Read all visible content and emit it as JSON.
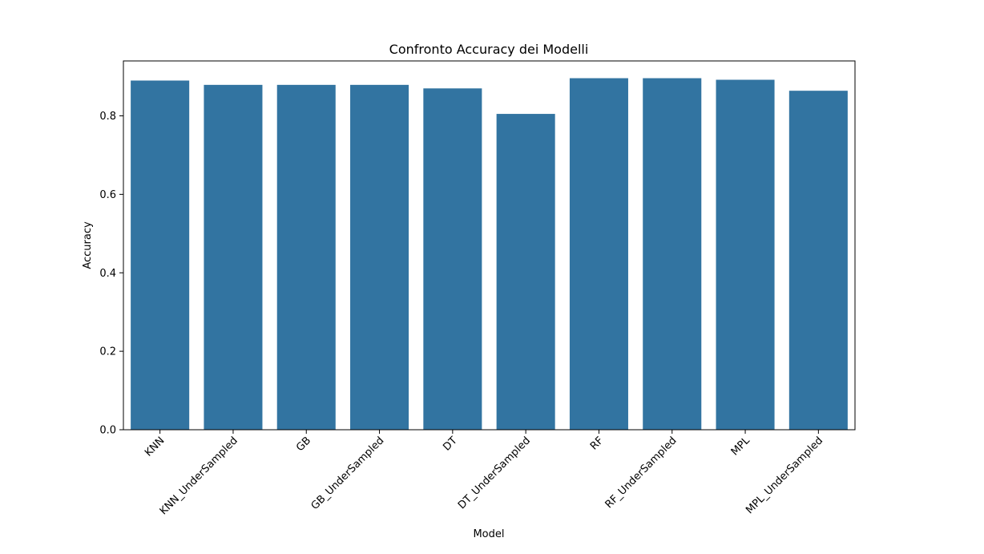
{
  "chart_data": {
    "type": "bar",
    "title": "Confronto Accuracy dei Modelli",
    "xlabel": "Model",
    "ylabel": "Accuracy",
    "categories": [
      "KNN",
      "KNN_UnderSampled",
      "GB",
      "GB_UnderSampled",
      "DT",
      "DT_UnderSampled",
      "RF",
      "RF_UnderSampled",
      "MPL",
      "MPL_UnderSampled"
    ],
    "values": [
      0.89,
      0.879,
      0.879,
      0.879,
      0.87,
      0.805,
      0.896,
      0.896,
      0.892,
      0.864
    ],
    "ylim": [
      0,
      0.94
    ],
    "yticks": [
      "0.0",
      "0.2",
      "0.4",
      "0.6",
      "0.8"
    ],
    "ytick_values": [
      0,
      0.2,
      0.4,
      0.6,
      0.8
    ],
    "grid": false,
    "legend": "none",
    "bar_color": "#3274a1"
  }
}
